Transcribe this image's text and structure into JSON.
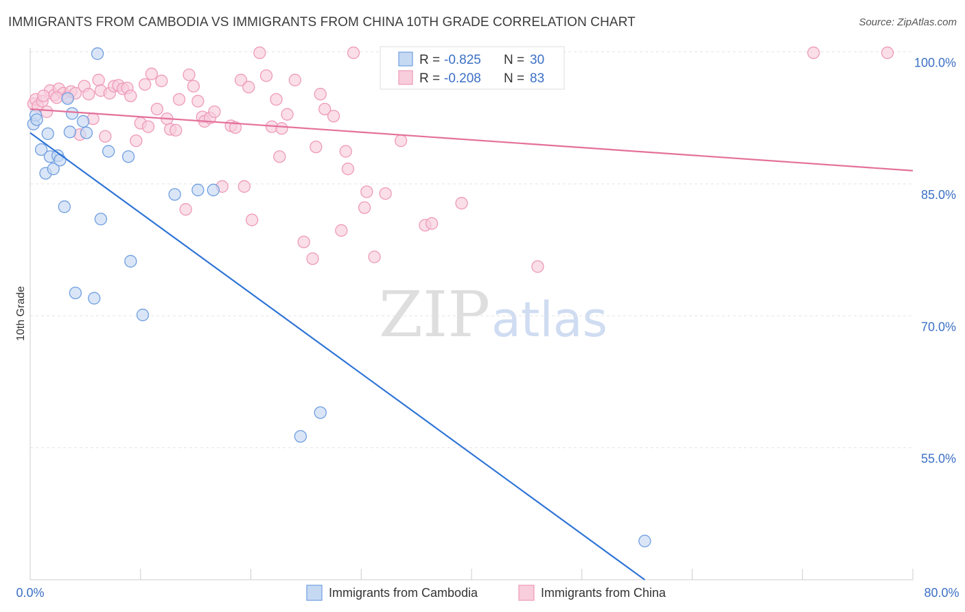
{
  "header": {
    "title": "IMMIGRANTS FROM CAMBODIA VS IMMIGRANTS FROM CHINA 10TH GRADE CORRELATION CHART",
    "source": "Source: ZipAtlas.com"
  },
  "watermark": {
    "zip": "ZIP",
    "atlas": "atlas"
  },
  "chart_data": {
    "type": "scatter",
    "title": "IMMIGRANTS FROM CAMBODIA VS IMMIGRANTS FROM CHINA 10TH GRADE CORRELATION CHART",
    "xlabel": "",
    "ylabel": "10th Grade",
    "xlim": [
      0,
      80
    ],
    "ylim": [
      40,
      102
    ],
    "x_tick_labels": [
      "0.0%",
      "80.0%"
    ],
    "y_ticks": [
      {
        "value": 100,
        "label": "100.0%"
      },
      {
        "value": 85,
        "label": "85.0%"
      },
      {
        "value": 70,
        "label": "70.0%"
      },
      {
        "value": 55,
        "label": "55.0%"
      }
    ],
    "grid": true,
    "legend_position": "bottom",
    "stats": [
      {
        "r_label": "R =",
        "r_value": "-0.825",
        "n_label": "N =",
        "n_value": "30"
      },
      {
        "r_label": "R =",
        "r_value": "-0.208",
        "n_label": "N =",
        "n_value": "83"
      }
    ],
    "series": [
      {
        "name": "Immigrants from Cambodia",
        "color": "#6f9ee0",
        "fill": "#c6d9f3",
        "line_color": "#2e74d6",
        "trend": {
          "x": [
            0,
            55.7
          ],
          "y": [
            90.8,
            40
          ]
        },
        "points": [
          {
            "x": 0.3,
            "y": 91.8
          },
          {
            "x": 0.5,
            "y": 92.8
          },
          {
            "x": 0.6,
            "y": 92.3
          },
          {
            "x": 1.0,
            "y": 88.9
          },
          {
            "x": 1.4,
            "y": 86.2
          },
          {
            "x": 1.6,
            "y": 90.7
          },
          {
            "x": 1.8,
            "y": 88.1
          },
          {
            "x": 2.1,
            "y": 86.7
          },
          {
            "x": 2.5,
            "y": 88.2
          },
          {
            "x": 2.7,
            "y": 87.7
          },
          {
            "x": 3.1,
            "y": 82.4
          },
          {
            "x": 3.4,
            "y": 94.7
          },
          {
            "x": 3.6,
            "y": 90.9
          },
          {
            "x": 3.8,
            "y": 93.0
          },
          {
            "x": 4.1,
            "y": 72.6
          },
          {
            "x": 4.8,
            "y": 92.1
          },
          {
            "x": 5.1,
            "y": 90.8
          },
          {
            "x": 5.8,
            "y": 72.0
          },
          {
            "x": 6.1,
            "y": 99.8
          },
          {
            "x": 6.4,
            "y": 81.0
          },
          {
            "x": 7.1,
            "y": 88.7
          },
          {
            "x": 8.9,
            "y": 88.1
          },
          {
            "x": 9.1,
            "y": 76.2
          },
          {
            "x": 10.2,
            "y": 70.1
          },
          {
            "x": 13.1,
            "y": 83.8
          },
          {
            "x": 15.2,
            "y": 84.3
          },
          {
            "x": 16.6,
            "y": 84.3
          },
          {
            "x": 24.5,
            "y": 56.3
          },
          {
            "x": 26.3,
            "y": 59.0
          },
          {
            "x": 55.7,
            "y": 44.4
          }
        ]
      },
      {
        "name": "Immigrants from China",
        "color": "#ee9ab8",
        "fill": "#f8cddc",
        "line_color": "#e4709a",
        "trend": {
          "x": [
            0,
            80
          ],
          "y": [
            93.5,
            86.5
          ]
        },
        "points": [
          {
            "x": 0.3,
            "y": 94.1
          },
          {
            "x": 0.5,
            "y": 94.6
          },
          {
            "x": 0.7,
            "y": 93.8
          },
          {
            "x": 1.1,
            "y": 94.4
          },
          {
            "x": 1.5,
            "y": 93.2
          },
          {
            "x": 1.8,
            "y": 95.6
          },
          {
            "x": 2.2,
            "y": 95.1
          },
          {
            "x": 2.6,
            "y": 95.8
          },
          {
            "x": 3.0,
            "y": 95.3
          },
          {
            "x": 3.4,
            "y": 94.9
          },
          {
            "x": 3.7,
            "y": 95.5
          },
          {
            "x": 4.1,
            "y": 95.3
          },
          {
            "x": 4.5,
            "y": 90.6
          },
          {
            "x": 4.9,
            "y": 96.1
          },
          {
            "x": 5.3,
            "y": 95.2
          },
          {
            "x": 5.7,
            "y": 92.4
          },
          {
            "x": 6.2,
            "y": 96.8
          },
          {
            "x": 6.4,
            "y": 95.6
          },
          {
            "x": 6.8,
            "y": 90.4
          },
          {
            "x": 7.2,
            "y": 95.3
          },
          {
            "x": 7.6,
            "y": 96.1
          },
          {
            "x": 8.0,
            "y": 96.2
          },
          {
            "x": 8.4,
            "y": 95.8
          },
          {
            "x": 8.8,
            "y": 95.9
          },
          {
            "x": 9.1,
            "y": 95.0
          },
          {
            "x": 9.6,
            "y": 89.9
          },
          {
            "x": 10.0,
            "y": 91.9
          },
          {
            "x": 10.4,
            "y": 96.3
          },
          {
            "x": 10.7,
            "y": 91.5
          },
          {
            "x": 11.0,
            "y": 97.5
          },
          {
            "x": 11.5,
            "y": 93.5
          },
          {
            "x": 11.9,
            "y": 96.7
          },
          {
            "x": 12.4,
            "y": 92.4
          },
          {
            "x": 12.7,
            "y": 91.2
          },
          {
            "x": 13.2,
            "y": 91.1
          },
          {
            "x": 13.5,
            "y": 94.6
          },
          {
            "x": 14.1,
            "y": 82.1
          },
          {
            "x": 14.4,
            "y": 97.4
          },
          {
            "x": 14.8,
            "y": 96.1
          },
          {
            "x": 15.2,
            "y": 94.4
          },
          {
            "x": 15.6,
            "y": 92.6
          },
          {
            "x": 15.8,
            "y": 92.1
          },
          {
            "x": 16.3,
            "y": 92.5
          },
          {
            "x": 16.7,
            "y": 93.2
          },
          {
            "x": 17.4,
            "y": 84.7
          },
          {
            "x": 18.2,
            "y": 91.6
          },
          {
            "x": 18.6,
            "y": 91.4
          },
          {
            "x": 19.1,
            "y": 96.8
          },
          {
            "x": 19.4,
            "y": 84.7
          },
          {
            "x": 19.8,
            "y": 96.0
          },
          {
            "x": 20.1,
            "y": 80.9
          },
          {
            "x": 20.8,
            "y": 99.9
          },
          {
            "x": 21.4,
            "y": 97.3
          },
          {
            "x": 21.9,
            "y": 91.5
          },
          {
            "x": 22.3,
            "y": 94.6
          },
          {
            "x": 22.6,
            "y": 88.1
          },
          {
            "x": 22.8,
            "y": 91.3
          },
          {
            "x": 23.3,
            "y": 92.9
          },
          {
            "x": 24.0,
            "y": 96.8
          },
          {
            "x": 24.8,
            "y": 78.4
          },
          {
            "x": 25.6,
            "y": 76.5
          },
          {
            "x": 25.9,
            "y": 89.2
          },
          {
            "x": 26.3,
            "y": 95.2
          },
          {
            "x": 26.7,
            "y": 93.5
          },
          {
            "x": 27.5,
            "y": 92.7
          },
          {
            "x": 28.2,
            "y": 79.7
          },
          {
            "x": 28.6,
            "y": 88.7
          },
          {
            "x": 28.8,
            "y": 86.7
          },
          {
            "x": 29.3,
            "y": 99.9
          },
          {
            "x": 30.3,
            "y": 82.3
          },
          {
            "x": 30.5,
            "y": 84.1
          },
          {
            "x": 31.2,
            "y": 76.7
          },
          {
            "x": 32.2,
            "y": 83.9
          },
          {
            "x": 32.8,
            "y": 99.9
          },
          {
            "x": 33.6,
            "y": 89.9
          },
          {
            "x": 35.8,
            "y": 80.3
          },
          {
            "x": 36.4,
            "y": 80.5
          },
          {
            "x": 39.1,
            "y": 82.8
          },
          {
            "x": 46.0,
            "y": 75.6
          },
          {
            "x": 71.0,
            "y": 99.9
          },
          {
            "x": 77.7,
            "y": 99.9
          },
          {
            "x": 1.2,
            "y": 95.0
          },
          {
            "x": 2.4,
            "y": 94.8
          }
        ]
      }
    ]
  }
}
